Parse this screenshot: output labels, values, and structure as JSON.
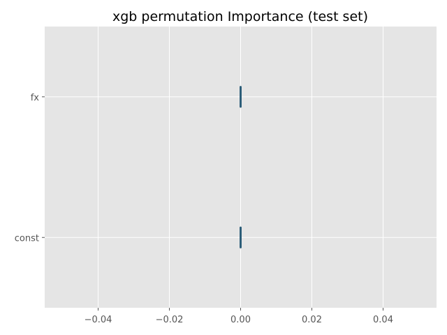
{
  "chart_data": {
    "type": "boxplot",
    "orientation": "horizontal",
    "title": "xgb permutation Importance (test set)",
    "xlabel": "",
    "ylabel": "",
    "xlim": [
      -0.055,
      0.055
    ],
    "x_ticks": [
      -0.04,
      -0.02,
      0.0,
      0.02,
      0.04
    ],
    "x_tick_labels": [
      "−0.04",
      "−0.02",
      "0.00",
      "0.02",
      "0.04"
    ],
    "categories": [
      "const",
      "fx"
    ],
    "series": [
      {
        "category": "const",
        "min": 0.0,
        "q1": 0.0,
        "median": 0.0,
        "q3": 0.0,
        "max": 0.0
      },
      {
        "category": "fx",
        "min": 0.0,
        "q1": 0.0,
        "median": 0.0,
        "q3": 0.0,
        "max": 0.0
      }
    ],
    "grid": true,
    "style": {
      "background": "#e5e5e5",
      "grid_color": "#ffffff",
      "box_color": "#348abd",
      "text_color": "#555555"
    }
  }
}
